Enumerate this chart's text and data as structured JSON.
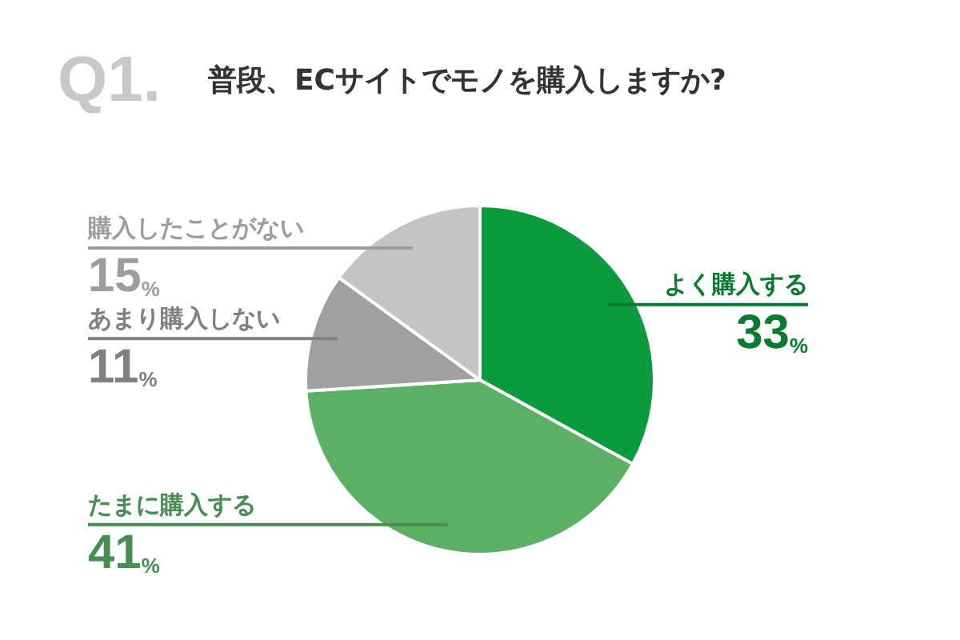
{
  "chart_data": {
    "type": "pie",
    "title": "普段、ECサイトでモノを購入しますか?",
    "annotations": [
      "Q1."
    ],
    "categories": [
      "よく購入する",
      "たまに購入する",
      "あまり購入しない",
      "購入したことがない"
    ],
    "values": [
      33,
      41,
      11,
      15
    ],
    "colors": [
      "#0b9a3d",
      "#5cb066",
      "#a0a0a0",
      "#c4c4c4"
    ],
    "value_labels": [
      "33%",
      "41%",
      "11%",
      "15%"
    ],
    "legend": false
  }
}
